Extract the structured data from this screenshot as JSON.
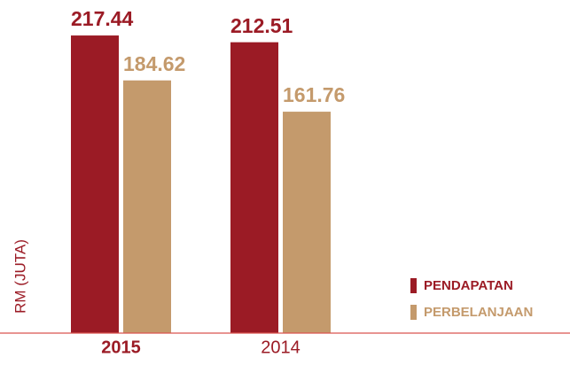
{
  "chart_data": {
    "type": "bar",
    "y_label": "RM (JUTA)",
    "categories": [
      "2015",
      "2014"
    ],
    "series": [
      {
        "name": "PENDAPATAN",
        "color": "#9b1b25",
        "values": [
          217.44,
          212.51
        ]
      },
      {
        "name": "PERBELANJAAN",
        "color": "#c49a6c",
        "values": [
          184.62,
          161.76
        ]
      }
    ]
  }
}
